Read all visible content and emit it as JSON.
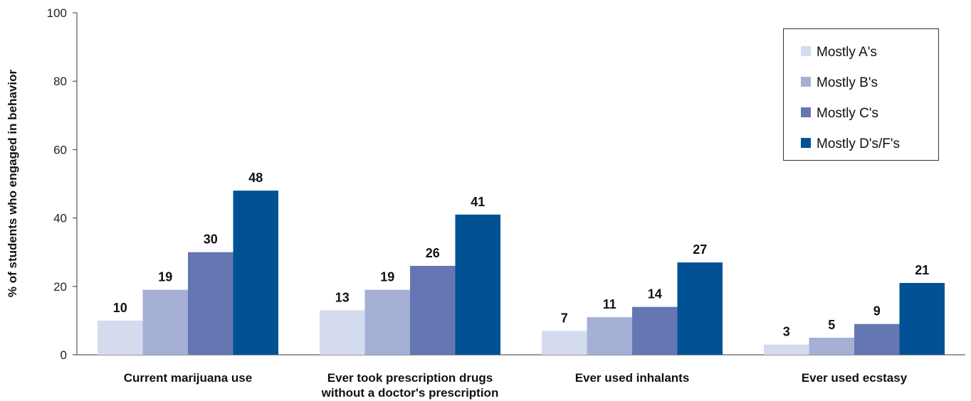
{
  "chart_data": {
    "type": "bar",
    "ylabel": "% of students who engaged in behavior",
    "xlabel": "",
    "ylim": [
      0,
      100
    ],
    "yticks": [
      0,
      20,
      40,
      60,
      80,
      100
    ],
    "grid": false,
    "legend_placement": "top-right",
    "categories": [
      [
        "Current marijuana use"
      ],
      [
        "Ever took prescription drugs",
        "without a doctor's prescription"
      ],
      [
        "Ever used inhalants"
      ],
      [
        "Ever used ecstasy"
      ]
    ],
    "series": [
      {
        "name": "Mostly A's",
        "color": "#d5dbee",
        "values": [
          10,
          13,
          7,
          3
        ]
      },
      {
        "name": "Mostly B's",
        "color": "#a6afd6",
        "values": [
          19,
          19,
          11,
          5
        ]
      },
      {
        "name": "Mostly C's",
        "color": "#6577b2",
        "values": [
          30,
          26,
          14,
          9
        ]
      },
      {
        "name": "Mostly D's/F's",
        "color": "#005294",
        "values": [
          48,
          41,
          27,
          21
        ]
      }
    ]
  }
}
